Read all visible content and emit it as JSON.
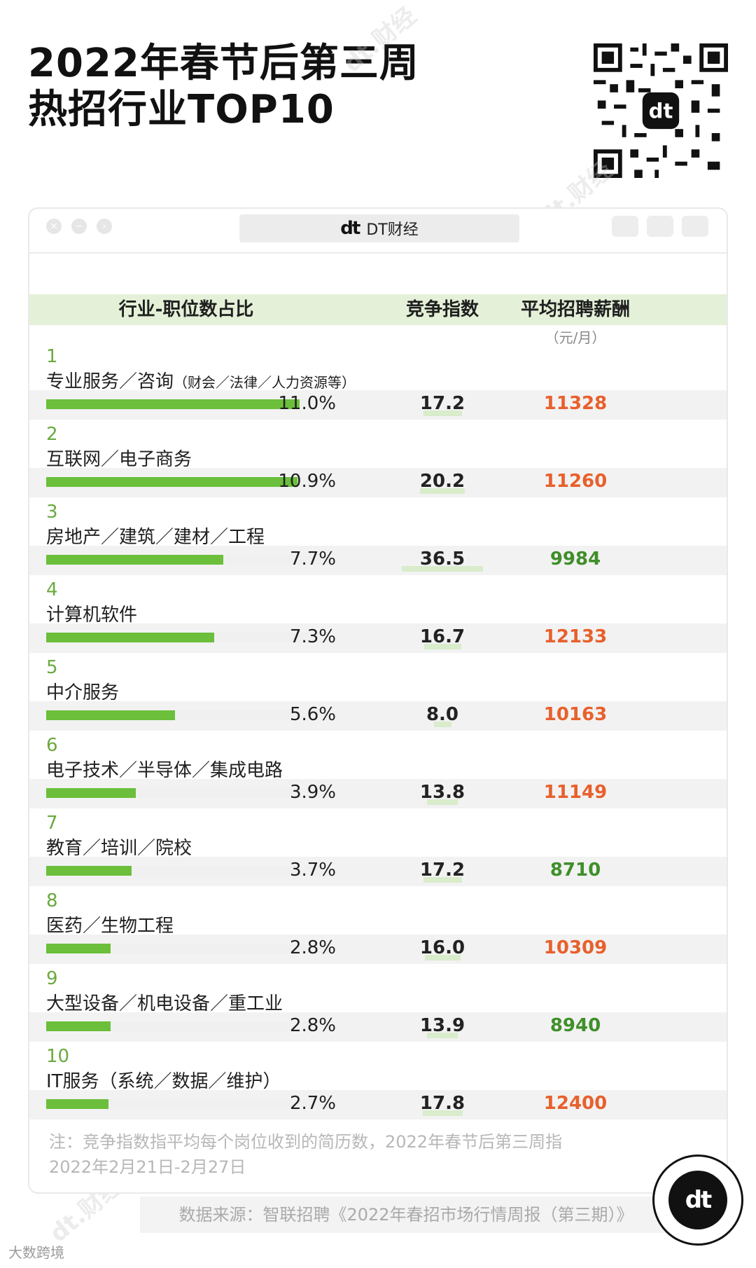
{
  "title": {
    "line1": "2022年春节后第三周",
    "line2": "热招行业TOP10"
  },
  "browser": {
    "app_name": "DT财经",
    "logo": "dt"
  },
  "table": {
    "headers": {
      "industry": "行业-职位数占比",
      "competition": "竞争指数",
      "salary": "平均招聘薪酬"
    },
    "salary_unit": "（元/月）"
  },
  "chart_data": {
    "type": "table",
    "columns": [
      "行业-职位数占比",
      "竞争指数",
      "平均招聘薪酬"
    ],
    "rows": [
      {
        "rank": "1",
        "industry": "专业服务／咨询",
        "industry_note": "（财会／法律／人力资源等）",
        "share": 11.0,
        "share_label": "11.0%",
        "competition": 17.2,
        "competition_label": "17.2",
        "salary": 11328,
        "salary_label": "11328",
        "salary_color": "#e8602c"
      },
      {
        "rank": "2",
        "industry": "互联网／电子商务",
        "industry_note": "",
        "share": 10.9,
        "share_label": "10.9%",
        "competition": 20.2,
        "competition_label": "20.2",
        "salary": 11260,
        "salary_label": "11260",
        "salary_color": "#e8602c"
      },
      {
        "rank": "3",
        "industry": "房地产／建筑／建材／工程",
        "industry_note": "",
        "share": 7.7,
        "share_label": "7.7%",
        "competition": 36.5,
        "competition_label": "36.5",
        "salary": 9984,
        "salary_label": "9984",
        "salary_color": "#3f8f2a"
      },
      {
        "rank": "4",
        "industry": "计算机软件",
        "industry_note": "",
        "share": 7.3,
        "share_label": "7.3%",
        "competition": 16.7,
        "competition_label": "16.7",
        "salary": 12133,
        "salary_label": "12133",
        "salary_color": "#e8602c"
      },
      {
        "rank": "5",
        "industry": "中介服务",
        "industry_note": "",
        "share": 5.6,
        "share_label": "5.6%",
        "competition": 8.0,
        "competition_label": "8.0",
        "salary": 10163,
        "salary_label": "10163",
        "salary_color": "#e8602c"
      },
      {
        "rank": "6",
        "industry": "电子技术／半导体／集成电路",
        "industry_note": "",
        "share": 3.9,
        "share_label": "3.9%",
        "competition": 13.8,
        "competition_label": "13.8",
        "salary": 11149,
        "salary_label": "11149",
        "salary_color": "#e8602c"
      },
      {
        "rank": "7",
        "industry": "教育／培训／院校",
        "industry_note": "",
        "share": 3.7,
        "share_label": "3.7%",
        "competition": 17.2,
        "competition_label": "17.2",
        "salary": 8710,
        "salary_label": "8710",
        "salary_color": "#3f8f2a"
      },
      {
        "rank": "8",
        "industry": "医药／生物工程",
        "industry_note": "",
        "share": 2.8,
        "share_label": "2.8%",
        "competition": 16.0,
        "competition_label": "16.0",
        "salary": 10309,
        "salary_label": "10309",
        "salary_color": "#e8602c"
      },
      {
        "rank": "9",
        "industry": "大型设备／机电设备／重工业",
        "industry_note": "",
        "share": 2.8,
        "share_label": "2.8%",
        "competition": 13.9,
        "competition_label": "13.9",
        "salary": 8940,
        "salary_label": "8940",
        "salary_color": "#3f8f2a"
      },
      {
        "rank": "10",
        "industry": "IT服务（系统／数据／维护）",
        "industry_note": "",
        "share": 2.7,
        "share_label": "2.7%",
        "competition": 17.8,
        "competition_label": "17.8",
        "salary": 12400,
        "salary_label": "12400",
        "salary_color": "#e8602c"
      }
    ],
    "share_max": 11.0,
    "competition_max": 36.5
  },
  "note": {
    "line1": "注：竞争指数指平均每个岗位收到的简历数，2022年春节后第三周指",
    "line2": "2022年2月21日-2月27日"
  },
  "source": "数据来源：智联招聘《2022年春招市场行情周报（第三期）》",
  "footer": "大数跨境",
  "colors": {
    "bar_green": "#6bbf3b",
    "header_bg": "#e4f1d8",
    "salary_high": "#e8602c",
    "salary_low": "#3f8f2a"
  }
}
